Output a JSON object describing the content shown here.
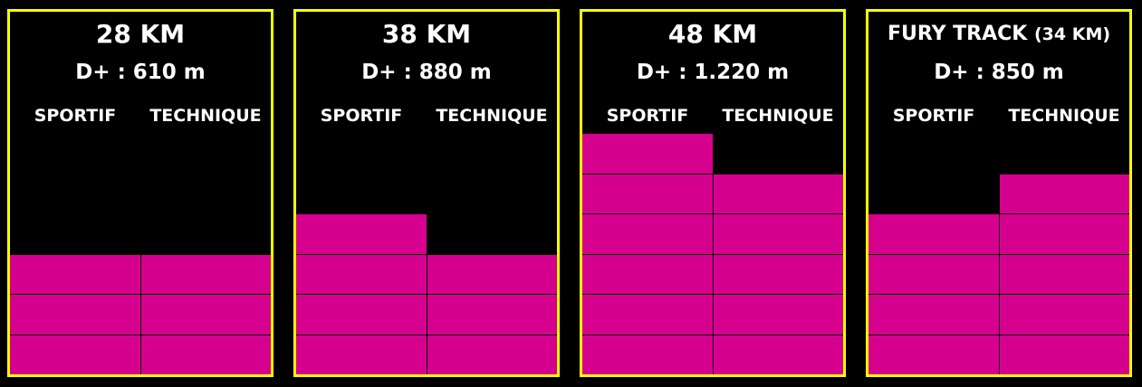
{
  "chart_data": {
    "type": "bar",
    "categories": [
      "SPORTIF",
      "TECHNIQUE"
    ],
    "max_level": 6,
    "colors": {
      "bar": "#d6008f",
      "border": "#ffff00",
      "background": "#000000"
    },
    "panels": [
      {
        "title": "28 KM",
        "subtitle": "",
        "dplus": "D+ : 610 m",
        "values": [
          3,
          3
        ]
      },
      {
        "title": "38 KM",
        "subtitle": "",
        "dplus": "D+ : 880 m",
        "values": [
          4,
          3
        ]
      },
      {
        "title": "48 KM",
        "subtitle": "",
        "dplus": "D+ : 1.220 m",
        "values": [
          6,
          5
        ]
      },
      {
        "title": "FURY TRACK",
        "subtitle": "(34 KM)",
        "dplus": "D+ : 850 m",
        "values": [
          4,
          5
        ]
      }
    ]
  }
}
